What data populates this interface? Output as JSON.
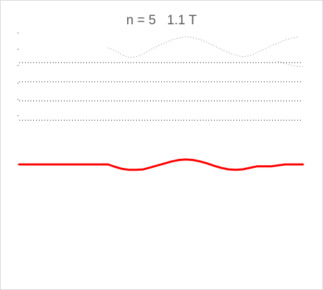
{
  "chart_data": {
    "type": "line",
    "title": "n = 5   1.1 T",
    "xlabel": "",
    "ylabel": "",
    "grid": false,
    "legend": "none",
    "xlim": [
      0,
      40
    ],
    "ylim": [
      -3.2,
      1.2
    ],
    "series": [
      {
        "style": "dotted",
        "color": "#7f7f7f",
        "x": [
          12.5,
          13.5,
          14.5,
          15.5,
          16.5,
          17.5,
          18.5,
          19.5,
          20.5,
          21.5,
          22.5,
          23.5,
          24.5,
          25.5,
          26.5,
          27.5,
          28.5,
          29.5,
          30.5,
          31.5,
          32.5,
          33.5,
          34.5,
          35.5,
          36.5,
          37.5,
          38.5,
          39.5
        ],
        "y": [
          0.82,
          0.76,
          0.68,
          0.62,
          0.64,
          0.7,
          0.78,
          0.86,
          0.92,
          0.98,
          1.02,
          1.05,
          1.03,
          0.99,
          0.93,
          0.86,
          0.79,
          0.72,
          0.67,
          0.64,
          0.66,
          0.72,
          0.79,
          0.86,
          0.92,
          0.98,
          1.02,
          1.05
        ]
      },
      {
        "style": "dotted",
        "color": "#7f7f7f",
        "x": [
          36.5,
          37.5,
          38.5,
          39.5,
          40
        ],
        "y": [
          0.55,
          0.5,
          0.46,
          0.44,
          0.44
        ]
      },
      {
        "style": "dotted",
        "color": "#000000",
        "x": [
          0,
          40
        ],
        "y": [
          0.52,
          0.52
        ]
      },
      {
        "style": "dotted",
        "color": "#000000",
        "x": [
          0,
          40
        ],
        "y": [
          0.13,
          0.13
        ]
      },
      {
        "style": "dotted",
        "color": "#000000",
        "x": [
          0,
          40
        ],
        "y": [
          -0.26,
          -0.26
        ]
      },
      {
        "style": "dotted",
        "color": "#000000",
        "x": [
          0,
          40
        ],
        "y": [
          -0.65,
          -0.65
        ]
      },
      {
        "style": "solid",
        "color": "#ff0000",
        "x": [
          0,
          2,
          4,
          6,
          8,
          10,
          12,
          12.5,
          13.5,
          14.5,
          15.5,
          16.5,
          17.5,
          18.5,
          19.5,
          20.5,
          21.5,
          22.5,
          23.5,
          24.5,
          25.5,
          26.5,
          27.5,
          28.5,
          29.5,
          30.5,
          31.5,
          32.5,
          33.5,
          34.5,
          35.5,
          36.5,
          37.5,
          38.5,
          39.5,
          40
        ],
        "y": [
          -1.55,
          -1.55,
          -1.55,
          -1.55,
          -1.55,
          -1.55,
          -1.55,
          -1.55,
          -1.6,
          -1.64,
          -1.66,
          -1.66,
          -1.65,
          -1.61,
          -1.57,
          -1.53,
          -1.49,
          -1.46,
          -1.45,
          -1.46,
          -1.49,
          -1.53,
          -1.58,
          -1.62,
          -1.65,
          -1.66,
          -1.65,
          -1.62,
          -1.59,
          -1.59,
          -1.59,
          -1.57,
          -1.55,
          -1.55,
          -1.55,
          -1.55
        ]
      }
    ]
  }
}
